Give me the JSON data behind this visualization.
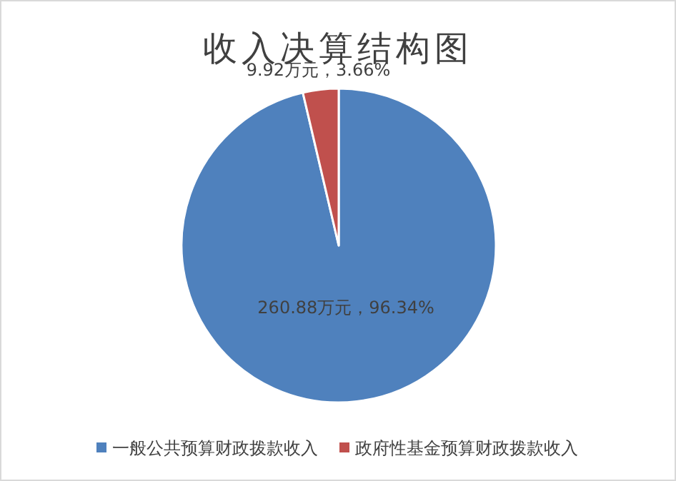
{
  "chart_data": {
    "type": "pie",
    "title": "收入决算结构图",
    "categories": [
      "一般公共预算财政拨款收入",
      "政府性基金预算财政拨款收入"
    ],
    "values": [
      260.88,
      9.92
    ],
    "colors": [
      "#4f81bd",
      "#c0504d"
    ],
    "value_labels": [
      "260.88万元，96.34%",
      "9.92万元，3.66%"
    ],
    "legend": "bottom"
  }
}
